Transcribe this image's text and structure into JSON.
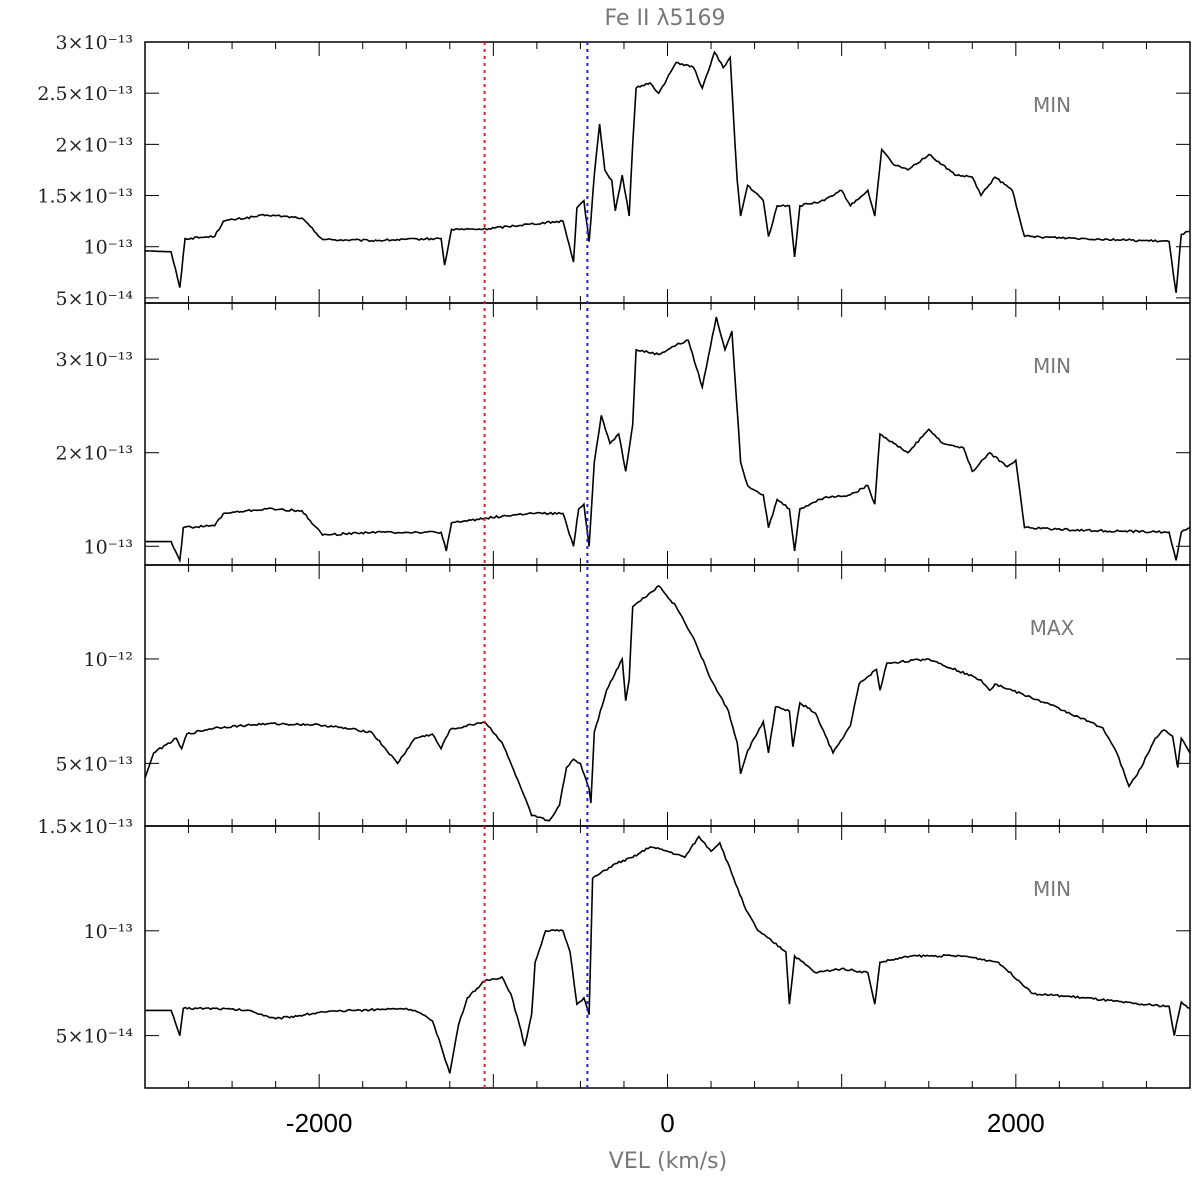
{
  "chart_data": {
    "type": "line",
    "title": "Fe II λ5169",
    "xlabel": "VEL (km/s)",
    "xlim": [
      -3000,
      3000
    ],
    "x_ticks": [
      -2000,
      0,
      2000
    ],
    "x_tick_labels": [
      "-2000",
      "0",
      "2000"
    ],
    "reference_lines": [
      {
        "x": -1050,
        "color": "#e02020",
        "style": "dotted"
      },
      {
        "x": -460,
        "color": "#2020e0",
        "style": "dotted"
      }
    ],
    "line_color": "#000000",
    "panels": [
      {
        "label": "MIN",
        "ylim": [
          4.5e-14,
          3e-13
        ],
        "y_ticks": [
          5e-14,
          1e-13,
          1.5e-13,
          2e-13,
          2.5e-13,
          3e-13
        ],
        "y_tick_labels": [
          "5×10⁻¹⁴",
          "10⁻¹³",
          "1.5×10⁻¹³",
          "2×10⁻¹³",
          "2.5×10⁻¹³",
          "3×10⁻¹³"
        ],
        "anchors": [
          [
            -3000,
            9.6e-14
          ],
          [
            -2850,
            9.5e-14
          ],
          [
            -2800,
            6e-14
          ],
          [
            -2770,
            1.08e-13
          ],
          [
            -2600,
            1.1e-13
          ],
          [
            -2550,
            1.25e-13
          ],
          [
            -2300,
            1.31e-13
          ],
          [
            -2100,
            1.28e-13
          ],
          [
            -1980,
            1.07e-13
          ],
          [
            -1700,
            1.06e-13
          ],
          [
            -1300,
            1.08e-13
          ],
          [
            -1280,
            8.2e-14
          ],
          [
            -1240,
            1.17e-13
          ],
          [
            -1060,
            1.17e-13
          ],
          [
            -800,
            1.22e-13
          ],
          [
            -600,
            1.25e-13
          ],
          [
            -540,
            8.5e-14
          ],
          [
            -520,
            1.38e-13
          ],
          [
            -480,
            1.45e-13
          ],
          [
            -450,
            1.05e-13
          ],
          [
            -420,
            1.7e-13
          ],
          [
            -390,
            2.2e-13
          ],
          [
            -360,
            1.75e-13
          ],
          [
            -320,
            1.65e-13
          ],
          [
            -300,
            1.35e-13
          ],
          [
            -260,
            1.7e-13
          ],
          [
            -220,
            1.3e-13
          ],
          [
            -200,
            2e-13
          ],
          [
            -180,
            2.55e-13
          ],
          [
            -100,
            2.6e-13
          ],
          [
            -50,
            2.5e-13
          ],
          [
            50,
            2.8e-13
          ],
          [
            150,
            2.75e-13
          ],
          [
            200,
            2.55e-13
          ],
          [
            270,
            2.9e-13
          ],
          [
            320,
            2.75e-13
          ],
          [
            360,
            2.85e-13
          ],
          [
            400,
            1.65e-13
          ],
          [
            420,
            1.3e-13
          ],
          [
            460,
            1.6e-13
          ],
          [
            550,
            1.45e-13
          ],
          [
            580,
            1.1e-13
          ],
          [
            630,
            1.4e-13
          ],
          [
            700,
            1.4e-13
          ],
          [
            730,
            9e-14
          ],
          [
            760,
            1.4e-13
          ],
          [
            900,
            1.45e-13
          ],
          [
            1000,
            1.55e-13
          ],
          [
            1050,
            1.4e-13
          ],
          [
            1150,
            1.55e-13
          ],
          [
            1190,
            1.3e-13
          ],
          [
            1230,
            1.95e-13
          ],
          [
            1300,
            1.8e-13
          ],
          [
            1380,
            1.75e-13
          ],
          [
            1500,
            1.9e-13
          ],
          [
            1580,
            1.8e-13
          ],
          [
            1650,
            1.7e-13
          ],
          [
            1750,
            1.68e-13
          ],
          [
            1800,
            1.5e-13
          ],
          [
            1880,
            1.68e-13
          ],
          [
            1980,
            1.55e-13
          ],
          [
            2050,
            1.1e-13
          ],
          [
            2400,
            1.08e-13
          ],
          [
            2880,
            1.05e-13
          ],
          [
            2920,
            5.5e-14
          ],
          [
            2950,
            1.12e-13
          ],
          [
            3000,
            1.15e-13
          ]
        ]
      },
      {
        "label": "MIN",
        "ylim": [
          8e-14,
          3.6e-13
        ],
        "y_ticks": [
          1e-13,
          2e-13,
          3e-13
        ],
        "y_tick_labels": [
          "10⁻¹³",
          "2×10⁻¹³",
          "3×10⁻¹³"
        ],
        "anchors": [
          [
            -3000,
            1.05e-13
          ],
          [
            -2850,
            1.05e-13
          ],
          [
            -2800,
            8.5e-14
          ],
          [
            -2780,
            1.2e-13
          ],
          [
            -2600,
            1.22e-13
          ],
          [
            -2550,
            1.35e-13
          ],
          [
            -2300,
            1.4e-13
          ],
          [
            -2100,
            1.38e-13
          ],
          [
            -1980,
            1.12e-13
          ],
          [
            -1700,
            1.15e-13
          ],
          [
            -1300,
            1.15e-13
          ],
          [
            -1270,
            9.5e-14
          ],
          [
            -1240,
            1.25e-13
          ],
          [
            -1050,
            1.3e-13
          ],
          [
            -800,
            1.35e-13
          ],
          [
            -600,
            1.35e-13
          ],
          [
            -540,
            1e-13
          ],
          [
            -510,
            1.4e-13
          ],
          [
            -480,
            1.45e-13
          ],
          [
            -450,
            1e-13
          ],
          [
            -420,
            1.9e-13
          ],
          [
            -380,
            2.4e-13
          ],
          [
            -330,
            2.1e-13
          ],
          [
            -280,
            2.2e-13
          ],
          [
            -240,
            1.8e-13
          ],
          [
            -200,
            2.3e-13
          ],
          [
            -180,
            3.1e-13
          ],
          [
            -50,
            3.05e-13
          ],
          [
            50,
            3.15e-13
          ],
          [
            120,
            3.2e-13
          ],
          [
            200,
            2.7e-13
          ],
          [
            280,
            3.45e-13
          ],
          [
            330,
            3.1e-13
          ],
          [
            370,
            3.3e-13
          ],
          [
            420,
            1.9e-13
          ],
          [
            460,
            1.65e-13
          ],
          [
            550,
            1.55e-13
          ],
          [
            580,
            1.2e-13
          ],
          [
            630,
            1.5e-13
          ],
          [
            700,
            1.4e-13
          ],
          [
            730,
            9.5e-14
          ],
          [
            760,
            1.4e-13
          ],
          [
            900,
            1.52e-13
          ],
          [
            1050,
            1.55e-13
          ],
          [
            1150,
            1.65e-13
          ],
          [
            1190,
            1.45e-13
          ],
          [
            1220,
            2.2e-13
          ],
          [
            1300,
            2.1e-13
          ],
          [
            1380,
            2e-13
          ],
          [
            1500,
            2.25e-13
          ],
          [
            1580,
            2.1e-13
          ],
          [
            1700,
            2.05e-13
          ],
          [
            1750,
            1.8e-13
          ],
          [
            1850,
            2e-13
          ],
          [
            1950,
            1.85e-13
          ],
          [
            2000,
            1.92e-13
          ],
          [
            2050,
            1.2e-13
          ],
          [
            2400,
            1.17e-13
          ],
          [
            2880,
            1.15e-13
          ],
          [
            2920,
            8.5e-14
          ],
          [
            2950,
            1.15e-13
          ],
          [
            3000,
            1.2e-13
          ]
        ]
      },
      {
        "label": "MAX",
        "ylim": [
          2e-13,
          1.45e-12
        ],
        "y_ticks": [
          5e-13,
          1e-12
        ],
        "y_tick_labels": [
          "5×10⁻¹³",
          "10⁻¹²"
        ],
        "anchors": [
          [
            -3000,
            4.3e-13
          ],
          [
            -2950,
            5.5e-13
          ],
          [
            -2820,
            6.2e-13
          ],
          [
            -2790,
            5.7e-13
          ],
          [
            -2760,
            6.4e-13
          ],
          [
            -2600,
            6.7e-13
          ],
          [
            -2300,
            6.9e-13
          ],
          [
            -2000,
            6.85e-13
          ],
          [
            -1700,
            6.5e-13
          ],
          [
            -1550,
            5e-13
          ],
          [
            -1450,
            6.2e-13
          ],
          [
            -1350,
            6.4e-13
          ],
          [
            -1300,
            5.7e-13
          ],
          [
            -1250,
            6.6e-13
          ],
          [
            -1050,
            7e-13
          ],
          [
            -950,
            6e-13
          ],
          [
            -850,
            4e-13
          ],
          [
            -780,
            2.5e-13
          ],
          [
            -680,
            2.25e-13
          ],
          [
            -620,
            3e-13
          ],
          [
            -580,
            4.8e-13
          ],
          [
            -540,
            5.2e-13
          ],
          [
            -500,
            5e-13
          ],
          [
            -450,
            3.8e-13
          ],
          [
            -440,
            3.1e-13
          ],
          [
            -420,
            6.5e-13
          ],
          [
            -350,
            8.5e-13
          ],
          [
            -260,
            1e-12
          ],
          [
            -240,
            8e-13
          ],
          [
            -220,
            9e-13
          ],
          [
            -200,
            1.25e-12
          ],
          [
            -50,
            1.35e-12
          ],
          [
            50,
            1.25e-12
          ],
          [
            150,
            1.1e-12
          ],
          [
            250,
            9e-13
          ],
          [
            350,
            7.5e-13
          ],
          [
            400,
            6e-13
          ],
          [
            420,
            4.5e-13
          ],
          [
            460,
            5.6e-13
          ],
          [
            550,
            7e-13
          ],
          [
            580,
            5.5e-13
          ],
          [
            620,
            7.7e-13
          ],
          [
            700,
            7.5e-13
          ],
          [
            720,
            5.8e-13
          ],
          [
            760,
            7.9e-13
          ],
          [
            850,
            7.4e-13
          ],
          [
            950,
            5.5e-13
          ],
          [
            1050,
            6.8e-13
          ],
          [
            1100,
            8.8e-13
          ],
          [
            1200,
            9.5e-13
          ],
          [
            1220,
            8.5e-13
          ],
          [
            1260,
            9.8e-13
          ],
          [
            1500,
            1e-12
          ],
          [
            1800,
            9e-13
          ],
          [
            1850,
            8.5e-13
          ],
          [
            1880,
            8.8e-13
          ],
          [
            2200,
            7.8e-13
          ],
          [
            2500,
            6.7e-13
          ],
          [
            2580,
            5.5e-13
          ],
          [
            2650,
            3.9e-13
          ],
          [
            2720,
            4.8e-13
          ],
          [
            2800,
            6.2e-13
          ],
          [
            2850,
            6.6e-13
          ],
          [
            2900,
            6.3e-13
          ],
          [
            2930,
            4.8e-13
          ],
          [
            2950,
            6.2e-13
          ],
          [
            3000,
            5.5e-13
          ]
        ]
      },
      {
        "label": "MIN",
        "ylim": [
          2.5e-14,
          1.5e-13
        ],
        "y_ticks": [
          5e-14,
          1e-13,
          1.5e-13
        ],
        "y_tick_labels": [
          "5×10⁻¹⁴",
          "10⁻¹³",
          "1.5×10⁻¹³"
        ],
        "anchors": [
          [
            -3000,
            6.2e-14
          ],
          [
            -2850,
            6.2e-14
          ],
          [
            -2800,
            5e-14
          ],
          [
            -2780,
            6.3e-14
          ],
          [
            -2600,
            6.3e-14
          ],
          [
            -2400,
            6.2e-14
          ],
          [
            -2250,
            5.8e-14
          ],
          [
            -2000,
            6.1e-14
          ],
          [
            -1800,
            6.2e-14
          ],
          [
            -1500,
            6.3e-14
          ],
          [
            -1450,
            6.2e-14
          ],
          [
            -1350,
            5.7e-14
          ],
          [
            -1300,
            4.5e-14
          ],
          [
            -1250,
            3.2e-14
          ],
          [
            -1200,
            5.5e-14
          ],
          [
            -1150,
            6.8e-14
          ],
          [
            -1050,
            7.6e-14
          ],
          [
            -950,
            7.8e-14
          ],
          [
            -900,
            7e-14
          ],
          [
            -850,
            5.5e-14
          ],
          [
            -820,
            4.5e-14
          ],
          [
            -780,
            6e-14
          ],
          [
            -760,
            8.5e-14
          ],
          [
            -700,
            1e-13
          ],
          [
            -600,
            1e-13
          ],
          [
            -560,
            9e-14
          ],
          [
            -520,
            6.5e-14
          ],
          [
            -480,
            6.8e-14
          ],
          [
            -450,
            6e-14
          ],
          [
            -430,
            1.25e-13
          ],
          [
            -300,
            1.32e-13
          ],
          [
            -200,
            1.35e-13
          ],
          [
            -100,
            1.4e-13
          ],
          [
            0,
            1.38e-13
          ],
          [
            100,
            1.35e-13
          ],
          [
            180,
            1.45e-13
          ],
          [
            250,
            1.38e-13
          ],
          [
            300,
            1.42e-13
          ],
          [
            380,
            1.25e-13
          ],
          [
            450,
            1.1e-13
          ],
          [
            520,
            1e-13
          ],
          [
            600,
            9.5e-14
          ],
          [
            680,
            9e-14
          ],
          [
            700,
            6.5e-14
          ],
          [
            730,
            8.8e-14
          ],
          [
            850,
            8e-14
          ],
          [
            1000,
            8.2e-14
          ],
          [
            1150,
            8e-14
          ],
          [
            1190,
            6.5e-14
          ],
          [
            1220,
            8.5e-14
          ],
          [
            1400,
            8.8e-14
          ],
          [
            1700,
            8.8e-14
          ],
          [
            1900,
            8.5e-14
          ],
          [
            2100,
            7e-14
          ],
          [
            2400,
            6.8e-14
          ],
          [
            2700,
            6.5e-14
          ],
          [
            2880,
            6.4e-14
          ],
          [
            2910,
            5e-14
          ],
          [
            2950,
            6.6e-14
          ],
          [
            3000,
            6.3e-14
          ]
        ]
      }
    ]
  }
}
